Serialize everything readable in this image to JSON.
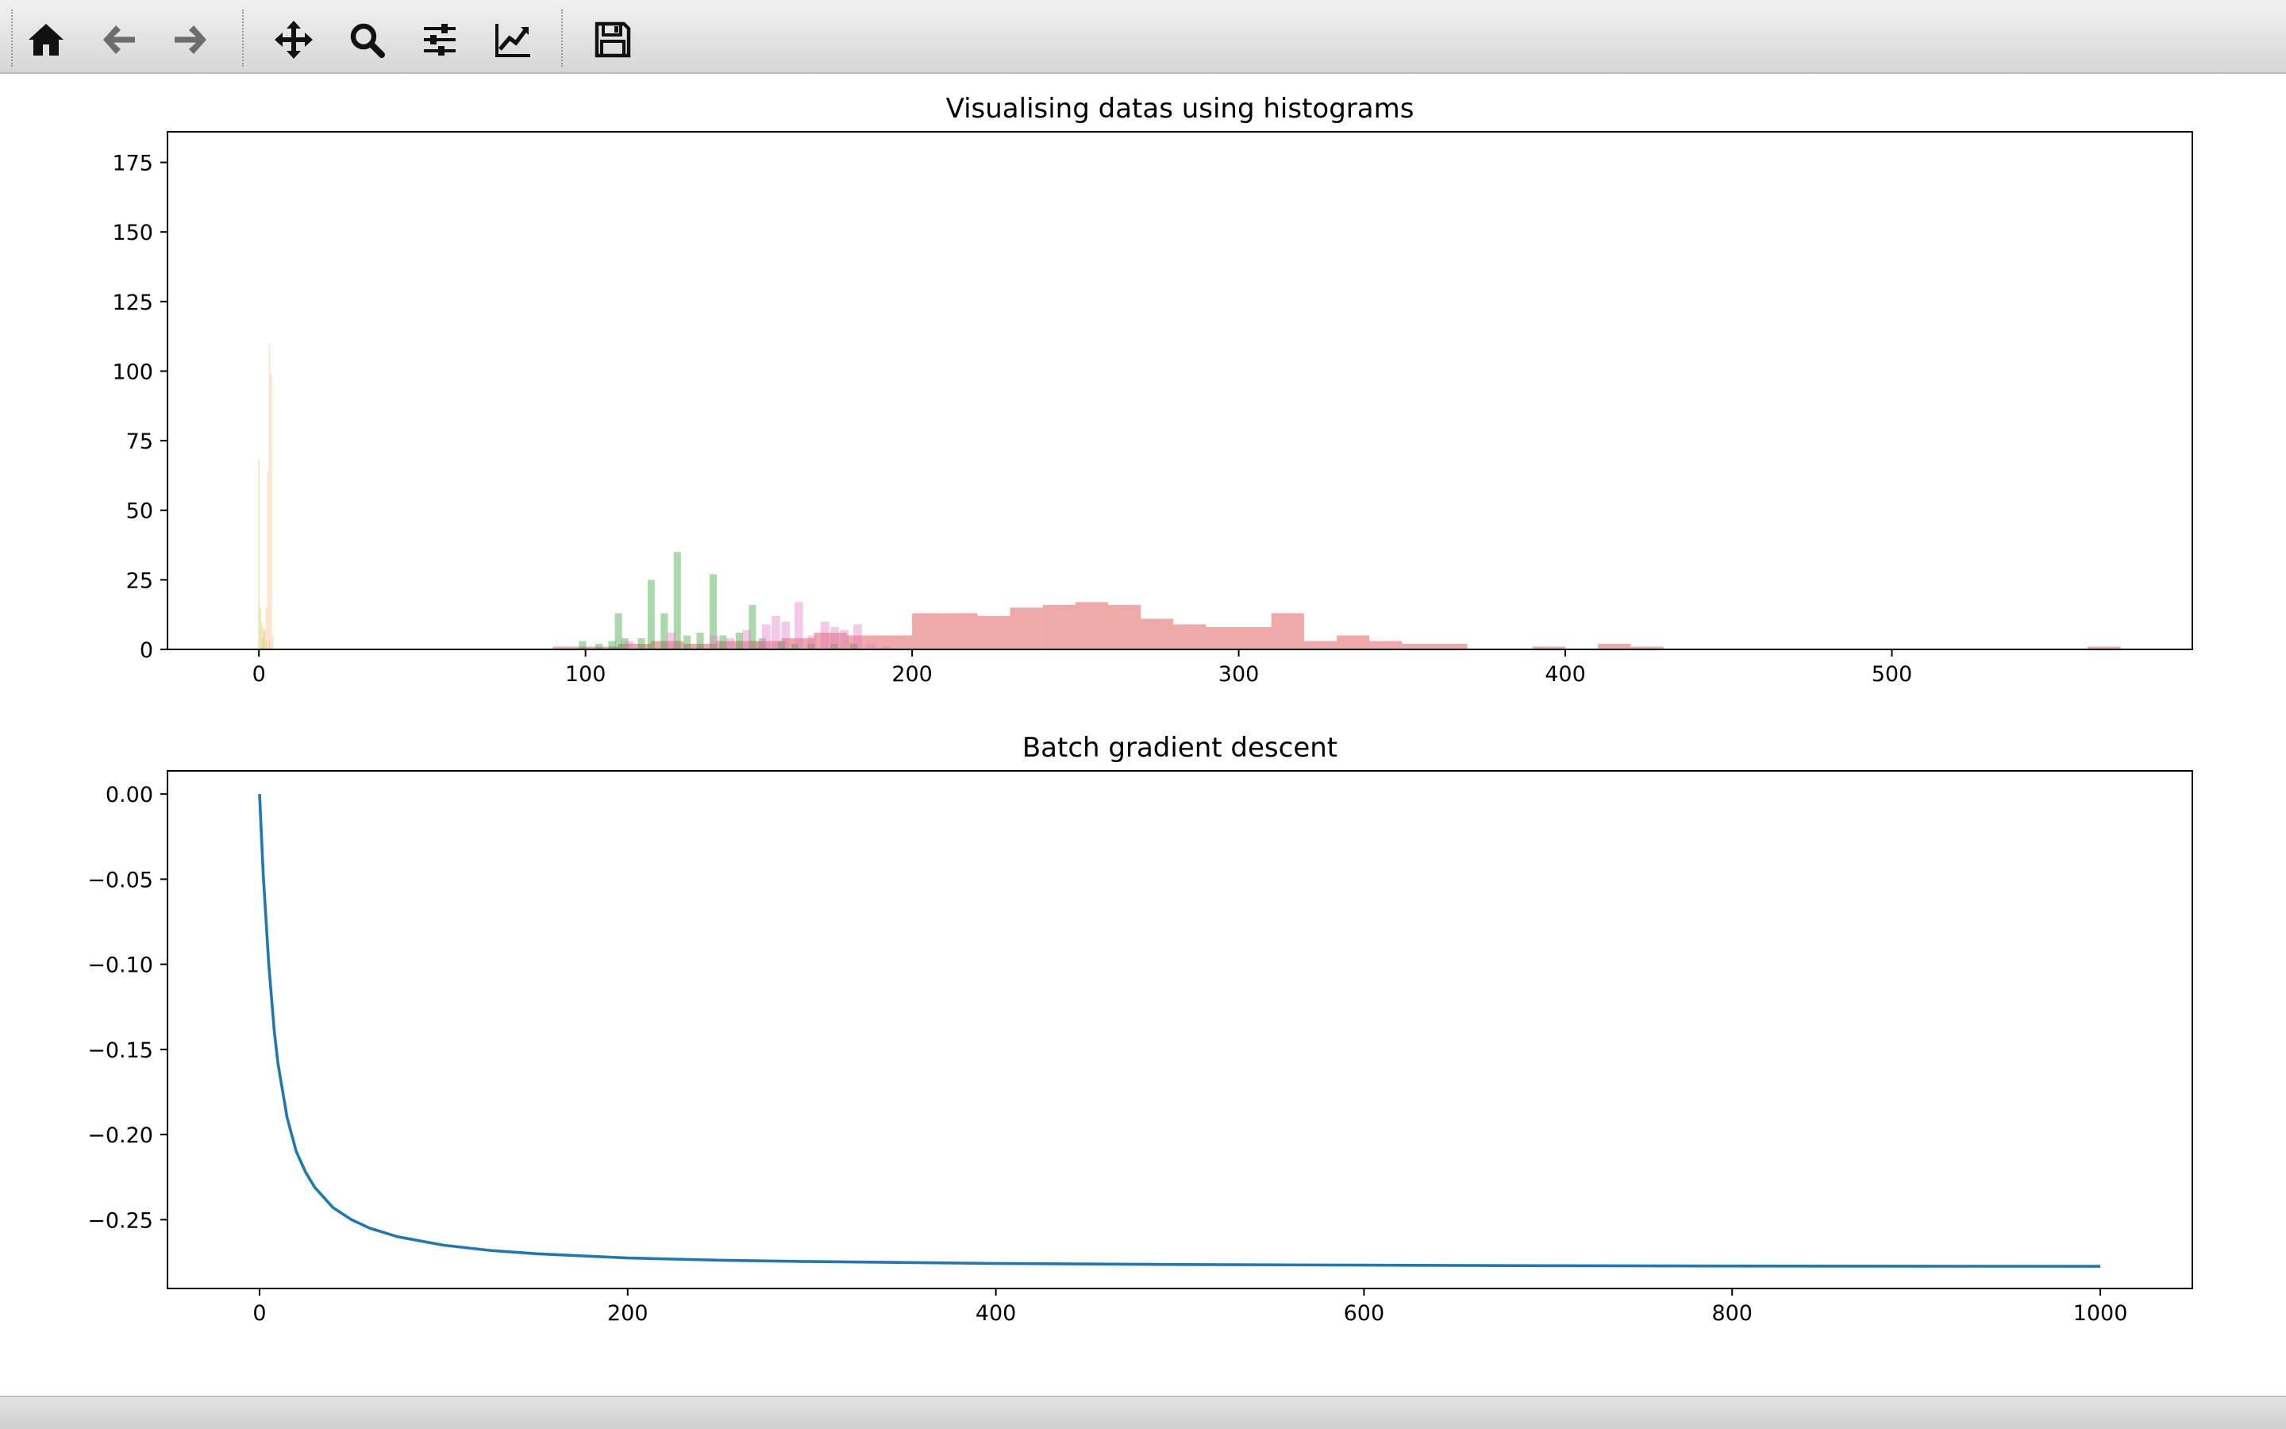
{
  "toolbar": {
    "tools": [
      {
        "name": "home-button",
        "icon": "home-icon",
        "tooltip": "Reset original view"
      },
      {
        "name": "back-button",
        "icon": "arrow-left-icon",
        "tooltip": "Back to previous view"
      },
      {
        "name": "forward-button",
        "icon": "arrow-right-icon",
        "tooltip": "Forward to next view"
      },
      {
        "name": "pan-button",
        "icon": "move-arrows-icon",
        "tooltip": "Pan axes"
      },
      {
        "name": "zoom-button",
        "icon": "magnifier-icon",
        "tooltip": "Zoom to rectangle"
      },
      {
        "name": "subplots-button",
        "icon": "sliders-icon",
        "tooltip": "Configure subplots"
      },
      {
        "name": "axes-button",
        "icon": "line-chart-icon",
        "tooltip": "Edit axis, curve and image parameters"
      },
      {
        "name": "save-button",
        "icon": "floppy-disk-icon",
        "tooltip": "Save the figure"
      }
    ]
  },
  "status": {
    "text": ""
  },
  "chart_data": [
    {
      "type": "bar",
      "title": "Visualising datas using histograms",
      "xlabel": "",
      "ylabel": "",
      "xlim": [
        -28,
        592
      ],
      "ylim": [
        0,
        186
      ],
      "xticks": [
        0,
        100,
        200,
        300,
        400,
        500
      ],
      "yticks": [
        0,
        25,
        50,
        75,
        100,
        125,
        150,
        175
      ],
      "grid": false,
      "series": [
        {
          "color": "#d62728",
          "opacity": 0.4,
          "bin_width": 10,
          "bins": [
            [
              90,
              1
            ],
            [
              100,
              1
            ],
            [
              110,
              2
            ],
            [
              120,
              3
            ],
            [
              130,
              2
            ],
            [
              140,
              3
            ],
            [
              150,
              3
            ],
            [
              160,
              4
            ],
            [
              170,
              6
            ],
            [
              180,
              5
            ],
            [
              190,
              5
            ],
            [
              200,
              13
            ],
            [
              210,
              13
            ],
            [
              220,
              12
            ],
            [
              230,
              15
            ],
            [
              240,
              16
            ],
            [
              250,
              17
            ],
            [
              260,
              16
            ],
            [
              270,
              11
            ],
            [
              280,
              9
            ],
            [
              290,
              8
            ],
            [
              300,
              8
            ],
            [
              310,
              13
            ],
            [
              320,
              3
            ],
            [
              330,
              5
            ],
            [
              340,
              3
            ],
            [
              350,
              2
            ],
            [
              360,
              2
            ],
            [
              390,
              1
            ],
            [
              410,
              2
            ],
            [
              420,
              1
            ],
            [
              560,
              1
            ]
          ]
        },
        {
          "color": "#2ca02c",
          "opacity": 0.4,
          "bin_width": 2.2,
          "bins": [
            [
              98,
              3
            ],
            [
              103,
              2
            ],
            [
              107,
              3
            ],
            [
              109,
              13
            ],
            [
              111,
              4
            ],
            [
              116,
              4
            ],
            [
              119,
              25
            ],
            [
              123,
              13
            ],
            [
              127,
              35
            ],
            [
              130,
              5
            ],
            [
              134,
              6
            ],
            [
              138,
              27
            ],
            [
              141,
              5
            ],
            [
              146,
              6
            ],
            [
              150,
              16
            ],
            [
              153,
              4
            ],
            [
              159,
              3
            ],
            [
              163,
              2
            ],
            [
              168,
              2
            ],
            [
              175,
              2
            ],
            [
              181,
              2
            ]
          ]
        },
        {
          "color": "#e377c2",
          "opacity": 0.4,
          "bin_width": 2.6,
          "bins": [
            [
              112,
              3
            ],
            [
              125,
              6
            ],
            [
              138,
              5
            ],
            [
              143,
              4
            ],
            [
              148,
              7
            ],
            [
              152,
              3
            ],
            [
              154,
              9
            ],
            [
              157,
              12
            ],
            [
              160,
              10
            ],
            [
              164,
              17
            ],
            [
              168,
              5
            ],
            [
              172,
              10
            ],
            [
              175,
              8
            ],
            [
              178,
              7
            ],
            [
              182,
              9
            ],
            [
              186,
              2
            ],
            [
              191,
              1
            ]
          ]
        },
        {
          "color": "#ff7f0e",
          "opacity": 0.2,
          "bin_width": 0.5,
          "bins": [
            [
              1.0,
              8
            ],
            [
              1.5,
              7
            ],
            [
              2.0,
              15
            ],
            [
              2.5,
              64
            ],
            [
              3.0,
              110
            ],
            [
              3.5,
              99
            ],
            [
              4.0,
              5
            ]
          ]
        },
        {
          "color": "#bcbd22",
          "opacity": 0.35,
          "bin_width": 0.4,
          "bins": [
            [
              -0.2,
              68
            ],
            [
              0.2,
              15
            ],
            [
              0.6,
              10
            ],
            [
              1.0,
              4
            ],
            [
              1.4,
              7
            ],
            [
              2.0,
              3
            ],
            [
              3.0,
              3
            ]
          ]
        }
      ]
    },
    {
      "type": "line",
      "title": "Batch gradient descent",
      "xlabel": "",
      "ylabel": "",
      "xlim": [
        -50,
        1050
      ],
      "ylim": [
        -0.2904,
        0.0136
      ],
      "xticks": [
        0,
        200,
        400,
        600,
        800,
        1000
      ],
      "yticks": [
        0.0,
        -0.05,
        -0.1,
        -0.15,
        -0.2,
        -0.25
      ],
      "ytick_labels": [
        "0.00",
        "−0.05",
        "−0.10",
        "−0.15",
        "−0.20",
        "−0.25"
      ],
      "grid": false,
      "series": [
        {
          "color": "#1f77b4",
          "x": [
            0,
            2,
            5,
            8,
            10,
            15,
            20,
            25,
            30,
            40,
            50,
            60,
            75,
            100,
            125,
            150,
            200,
            250,
            300,
            400,
            500,
            600,
            700,
            800,
            900,
            1000
          ],
          "y": [
            0.0,
            -0.047,
            -0.1,
            -0.139,
            -0.158,
            -0.19,
            -0.21,
            -0.222,
            -0.231,
            -0.243,
            -0.25,
            -0.255,
            -0.26,
            -0.265,
            -0.268,
            -0.27,
            -0.2725,
            -0.2738,
            -0.2746,
            -0.2757,
            -0.2763,
            -0.2767,
            -0.277,
            -0.2772,
            -0.2773,
            -0.2774
          ]
        }
      ]
    }
  ]
}
